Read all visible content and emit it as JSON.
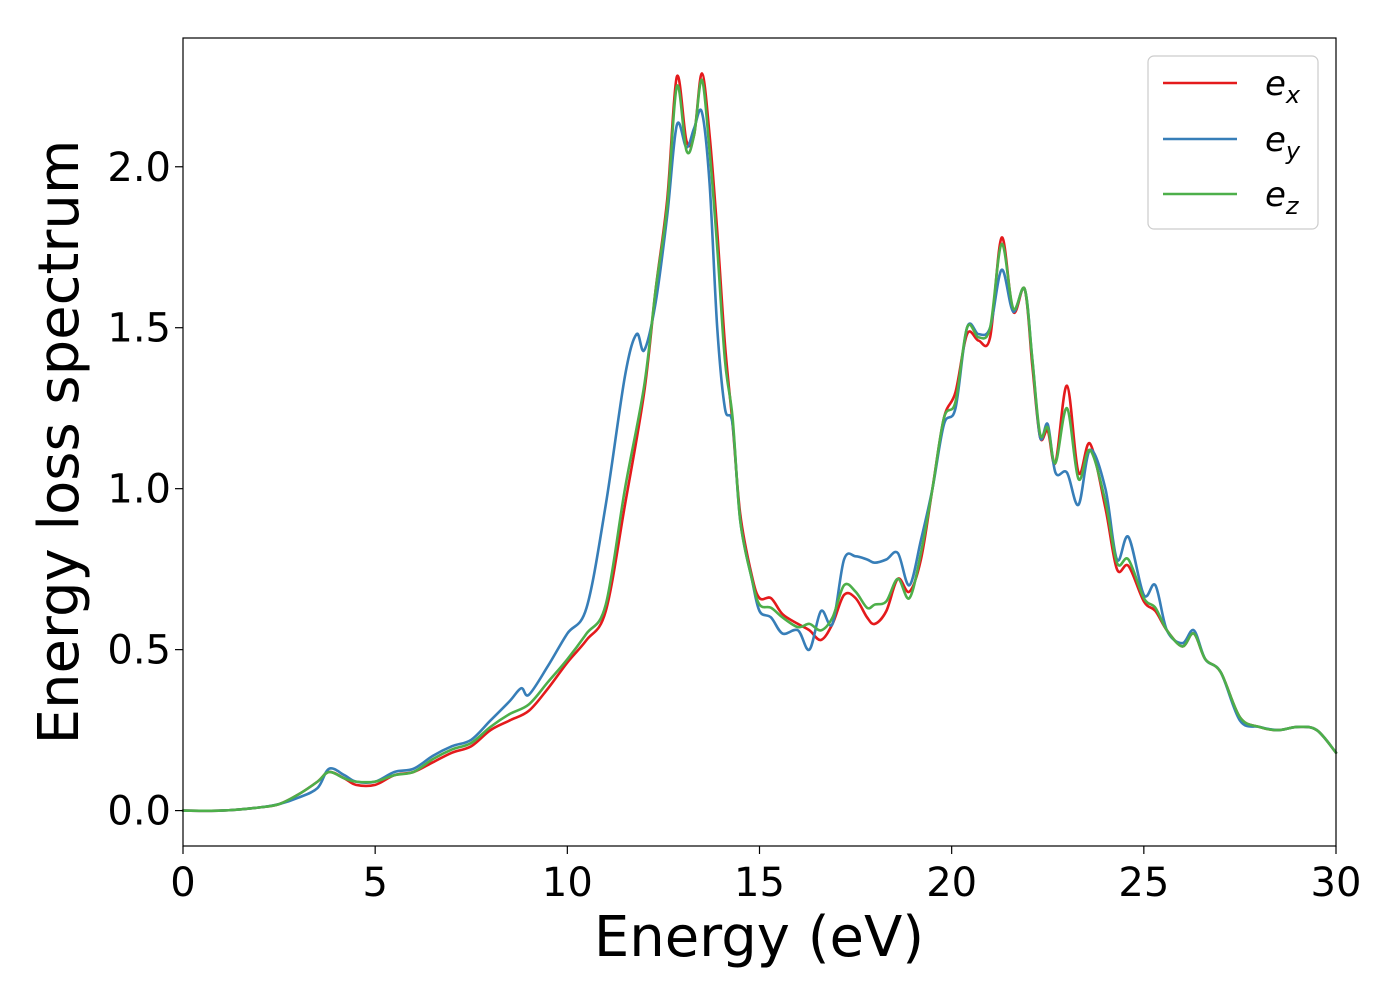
{
  "chart_data": {
    "type": "line",
    "title": "",
    "xlabel": "Energy (eV)",
    "ylabel": "Energy loss spectrum",
    "xlim": [
      0,
      30
    ],
    "ylim": [
      -0.11,
      2.4
    ],
    "xticks": [
      0,
      5,
      10,
      15,
      20,
      25,
      30
    ],
    "xtick_labels": [
      "0",
      "5",
      "10",
      "15",
      "20",
      "25",
      "30"
    ],
    "yticks": [
      0.0,
      0.5,
      1.0,
      1.5,
      2.0
    ],
    "ytick_labels": [
      "0.0",
      "0.5",
      "1.0",
      "1.5",
      "2.0"
    ],
    "grid": false,
    "legend_position": "top-right",
    "series": [
      {
        "name": "e_x",
        "legend_base": "e",
        "legend_sub": "x",
        "color": "#e41a1c",
        "x": [
          0,
          1,
          2,
          2.5,
          3,
          3.5,
          3.8,
          4.2,
          4.5,
          5,
          5.5,
          6,
          6.5,
          7,
          7.5,
          8,
          8.5,
          9,
          9.5,
          10,
          10.5,
          11,
          11.5,
          12,
          12.3,
          12.6,
          12.85,
          13.1,
          13.3,
          13.5,
          13.7,
          13.9,
          14.1,
          14.3,
          14.5,
          14.8,
          15,
          15.3,
          15.6,
          16,
          16.3,
          16.6,
          16.9,
          17.2,
          17.5,
          17.8,
          18,
          18.3,
          18.6,
          18.9,
          19.2,
          19.5,
          19.8,
          20.1,
          20.4,
          20.7,
          21,
          21.3,
          21.6,
          21.9,
          22.1,
          22.3,
          22.5,
          22.7,
          23,
          23.3,
          23.6,
          24,
          24.3,
          24.6,
          25,
          25.3,
          25.6,
          26,
          26.3,
          26.6,
          27,
          27.5,
          28,
          28.5,
          29,
          29.5,
          30
        ],
        "y": [
          0.0,
          0.0,
          0.01,
          0.02,
          0.05,
          0.09,
          0.12,
          0.1,
          0.08,
          0.08,
          0.11,
          0.12,
          0.15,
          0.18,
          0.2,
          0.25,
          0.28,
          0.31,
          0.38,
          0.46,
          0.53,
          0.62,
          0.95,
          1.3,
          1.62,
          1.9,
          2.28,
          2.08,
          2.1,
          2.29,
          2.1,
          1.8,
          1.45,
          1.2,
          0.92,
          0.73,
          0.66,
          0.66,
          0.61,
          0.58,
          0.56,
          0.53,
          0.58,
          0.67,
          0.66,
          0.6,
          0.58,
          0.62,
          0.72,
          0.68,
          0.78,
          1.0,
          1.22,
          1.3,
          1.48,
          1.46,
          1.47,
          1.78,
          1.55,
          1.62,
          1.38,
          1.16,
          1.18,
          1.08,
          1.32,
          1.05,
          1.14,
          0.94,
          0.75,
          0.76,
          0.65,
          0.62,
          0.56,
          0.51,
          0.55,
          0.47,
          0.43,
          0.29,
          0.26,
          0.25,
          0.26,
          0.25,
          0.18
        ]
      },
      {
        "name": "e_y",
        "legend_base": "e",
        "legend_sub": "y",
        "color": "#377eb8",
        "x": [
          0,
          1,
          2,
          2.5,
          3,
          3.5,
          3.8,
          4.2,
          4.5,
          5,
          5.5,
          6,
          6.5,
          7,
          7.5,
          8,
          8.5,
          8.8,
          9,
          9.5,
          10,
          10.5,
          11,
          11.5,
          11.8,
          12,
          12.3,
          12.6,
          12.85,
          13.1,
          13.3,
          13.5,
          13.7,
          13.9,
          14.1,
          14.3,
          14.5,
          14.8,
          15,
          15.3,
          15.6,
          16,
          16.3,
          16.6,
          16.9,
          17.2,
          17.5,
          17.8,
          18,
          18.3,
          18.6,
          18.9,
          19.2,
          19.5,
          19.8,
          20.1,
          20.4,
          20.7,
          21,
          21.3,
          21.6,
          21.9,
          22.1,
          22.3,
          22.5,
          22.7,
          23,
          23.3,
          23.6,
          24,
          24.3,
          24.6,
          25,
          25.3,
          25.6,
          26,
          26.3,
          26.6,
          27,
          27.5,
          28,
          28.5,
          29,
          29.5,
          30
        ],
        "y": [
          0.0,
          0.0,
          0.01,
          0.02,
          0.04,
          0.07,
          0.13,
          0.11,
          0.09,
          0.09,
          0.12,
          0.13,
          0.17,
          0.2,
          0.22,
          0.28,
          0.34,
          0.38,
          0.36,
          0.45,
          0.55,
          0.63,
          0.95,
          1.35,
          1.48,
          1.43,
          1.58,
          1.85,
          2.13,
          2.06,
          2.12,
          2.17,
          1.95,
          1.5,
          1.25,
          1.2,
          0.9,
          0.72,
          0.62,
          0.6,
          0.55,
          0.56,
          0.5,
          0.62,
          0.58,
          0.78,
          0.79,
          0.78,
          0.77,
          0.78,
          0.8,
          0.7,
          0.84,
          1.0,
          1.2,
          1.25,
          1.5,
          1.48,
          1.5,
          1.68,
          1.55,
          1.62,
          1.4,
          1.16,
          1.2,
          1.05,
          1.05,
          0.95,
          1.12,
          1.0,
          0.78,
          0.85,
          0.67,
          0.7,
          0.56,
          0.52,
          0.56,
          0.47,
          0.43,
          0.28,
          0.26,
          0.25,
          0.26,
          0.25,
          0.18
        ]
      },
      {
        "name": "e_z",
        "legend_base": "e",
        "legend_sub": "z",
        "color": "#4daf4a",
        "x": [
          0,
          1,
          2,
          2.5,
          3,
          3.5,
          3.8,
          4.2,
          4.5,
          5,
          5.5,
          6,
          6.5,
          7,
          7.5,
          8,
          8.5,
          9,
          9.5,
          10,
          10.5,
          11,
          11.5,
          12,
          12.3,
          12.6,
          12.85,
          13.1,
          13.3,
          13.5,
          13.7,
          13.9,
          14.1,
          14.3,
          14.5,
          14.8,
          15,
          15.3,
          15.6,
          16,
          16.3,
          16.6,
          16.9,
          17.2,
          17.5,
          17.8,
          18,
          18.3,
          18.6,
          18.9,
          19.2,
          19.5,
          19.8,
          20.1,
          20.4,
          20.7,
          21,
          21.3,
          21.6,
          21.9,
          22.1,
          22.3,
          22.5,
          22.7,
          23,
          23.3,
          23.6,
          24,
          24.3,
          24.6,
          25,
          25.3,
          25.6,
          26,
          26.3,
          26.6,
          27,
          27.5,
          28,
          28.5,
          29,
          29.5,
          30
        ],
        "y": [
          0.0,
          0.0,
          0.01,
          0.02,
          0.05,
          0.09,
          0.12,
          0.1,
          0.09,
          0.09,
          0.11,
          0.12,
          0.16,
          0.19,
          0.21,
          0.26,
          0.3,
          0.33,
          0.4,
          0.47,
          0.55,
          0.64,
          1.0,
          1.32,
          1.62,
          1.88,
          2.25,
          2.05,
          2.1,
          2.27,
          2.05,
          1.75,
          1.4,
          1.22,
          0.9,
          0.72,
          0.64,
          0.63,
          0.6,
          0.57,
          0.58,
          0.56,
          0.6,
          0.7,
          0.68,
          0.63,
          0.64,
          0.65,
          0.72,
          0.66,
          0.8,
          1.0,
          1.22,
          1.27,
          1.5,
          1.47,
          1.5,
          1.76,
          1.56,
          1.62,
          1.4,
          1.17,
          1.19,
          1.08,
          1.25,
          1.03,
          1.12,
          0.96,
          0.77,
          0.78,
          0.66,
          0.63,
          0.56,
          0.51,
          0.55,
          0.47,
          0.43,
          0.29,
          0.26,
          0.25,
          0.26,
          0.25,
          0.18
        ]
      }
    ]
  }
}
